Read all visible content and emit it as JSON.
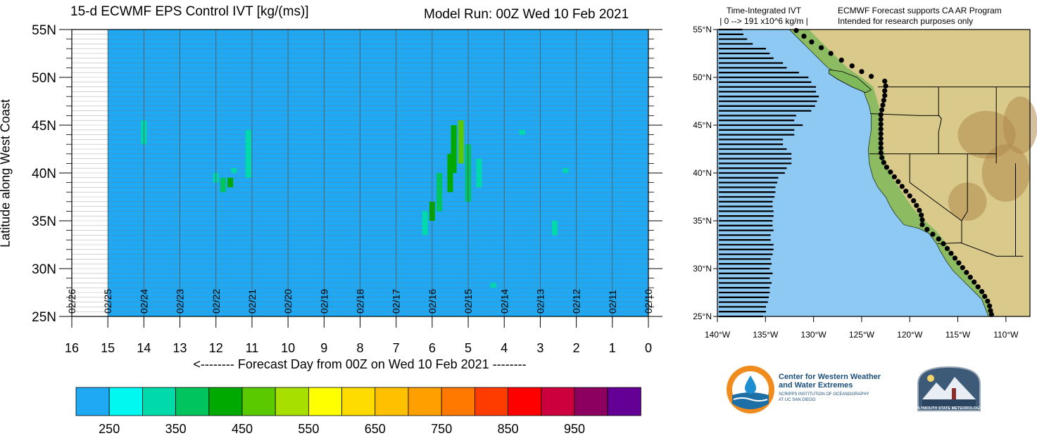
{
  "chart_data": [
    {
      "type": "heatmap",
      "title": "15-d ECWMF EPS Control IVT [kg/(ms)]",
      "subtitle": "Model Run: 00Z Wed 10 Feb 2021",
      "xlabel": "<-------- Forecast Day from 00Z on Wed 10 Feb 2021 --------",
      "ylabel": "Latitude along West Coast",
      "x_reversed": true,
      "xlim": [
        0,
        16
      ],
      "ylim": [
        25,
        55
      ],
      "x_ticks": [
        "16",
        "15",
        "14",
        "13",
        "12",
        "11",
        "10",
        "9",
        "8",
        "7",
        "6",
        "5",
        "4",
        "3",
        "2",
        "1",
        "0"
      ],
      "y_ticks": [
        "25N",
        "30N",
        "35N",
        "40N",
        "45N",
        "50N",
        "55N"
      ],
      "date_labels": [
        "02/26",
        "02/25",
        "02/24",
        "02/23",
        "02/22",
        "02/21",
        "02/20",
        "02/19",
        "02/18",
        "02/17",
        "02/16",
        "02/15",
        "02/14",
        "02/13",
        "02/12",
        "02/11",
        "02/10"
      ],
      "data_extent_days": [
        0,
        15
      ],
      "background_value": "< 250",
      "cells": [
        {
          "day": 14.0,
          "lat_min": 43,
          "lat_max": 45.5,
          "value": 300
        },
        {
          "day": 11.1,
          "lat_min": 39.5,
          "lat_max": 44.5,
          "value": 330
        },
        {
          "day": 11.5,
          "lat_min": 40,
          "lat_max": 40.5,
          "value": 330
        },
        {
          "day": 11.8,
          "lat_min": 38,
          "lat_max": 39.5,
          "value": 380
        },
        {
          "day": 12.0,
          "lat_min": 39,
          "lat_max": 40,
          "value": 320
        },
        {
          "day": 11.6,
          "lat_min": 38.5,
          "lat_max": 39.5,
          "value": 400
        },
        {
          "day": 2.3,
          "lat_min": 40,
          "lat_max": 40.5,
          "value": 320
        },
        {
          "day": 2.6,
          "lat_min": 33.5,
          "lat_max": 35,
          "value": 300
        },
        {
          "day": 3.5,
          "lat_min": 44,
          "lat_max": 44.5,
          "value": 300
        },
        {
          "day": 4.3,
          "lat_min": 28,
          "lat_max": 28.5,
          "value": 300
        },
        {
          "day": 6.0,
          "lat_min": 35,
          "lat_max": 37,
          "value": 400
        },
        {
          "day": 6.2,
          "lat_min": 33.5,
          "lat_max": 36,
          "value": 320
        },
        {
          "day": 5.8,
          "lat_min": 36,
          "lat_max": 40,
          "value": 380
        },
        {
          "day": 5.5,
          "lat_min": 38,
          "lat_max": 42,
          "value": 420
        },
        {
          "day": 5.4,
          "lat_min": 40,
          "lat_max": 45,
          "value": 430
        },
        {
          "day": 5.2,
          "lat_min": 41,
          "lat_max": 45.5,
          "value": 470
        },
        {
          "day": 5.0,
          "lat_min": 37,
          "lat_max": 43,
          "value": 380
        },
        {
          "day": 4.7,
          "lat_min": 38.5,
          "lat_max": 41.5,
          "value": 320
        }
      ]
    },
    {
      "type": "bar",
      "orientation": "horizontal",
      "title": "Time-Integrated IVT",
      "subtitle": "0 --> 191 x10^6 kg/m",
      "x_ticks": [
        "140°W",
        "135°W",
        "130°W",
        "125°W",
        "120°W",
        "115°W",
        "110°W"
      ],
      "y_ticks": [
        "25°N",
        "30°N",
        "35°N",
        "40°N",
        "45°N",
        "50°N",
        "55°N"
      ],
      "xlim": [
        191,
        0
      ],
      "ylim": [
        25,
        55
      ],
      "x_unit": "x10^6 kg/m",
      "lat_step": 0.5,
      "values": [
        47,
        50,
        50,
        52,
        53,
        54,
        54,
        56,
        54,
        57,
        54,
        56,
        55,
        57,
        58,
        58,
        55,
        55,
        58,
        57,
        57,
        58,
        58,
        57,
        57,
        59,
        60,
        60,
        62,
        63,
        70,
        72,
        77,
        77,
        77,
        72,
        68,
        68,
        80,
        80,
        89,
        80,
        82,
        98,
        102,
        104,
        106,
        103,
        103,
        98,
        95,
        85,
        72,
        68,
        58,
        54,
        50,
        36,
        30,
        26,
        25
      ]
    }
  ],
  "colorbar": {
    "labels": [
      "250",
      "350",
      "450",
      "550",
      "650",
      "750",
      "850",
      "950"
    ],
    "colors": [
      "#1fa9f5",
      "#00f8f0",
      "#00d9a9",
      "#00c45e",
      "#00a900",
      "#5bc900",
      "#a6df00",
      "#ffff00",
      "#ffdc00",
      "#ffc000",
      "#ffa000",
      "#ff7800",
      "#ff3c00",
      "#ff0000",
      "#cc003c",
      "#8c0060",
      "#640096"
    ]
  },
  "map_panel": {
    "header_left_line1": "Time-Integrated IVT",
    "header_left_line2": "| 0 --> 191 x10^6 kg/m |",
    "header_right_line1": "ECMWF Forecast supports CA AR Program",
    "header_right_line2": "Intended for research purposes only"
  },
  "logos": {
    "cw3e_line1": "Center for Western Weather",
    "cw3e_line2": "and Water Extremes",
    "cw3e_line3": "SCRIPPS INSTITUTION OF OCEANOGRAPHY",
    "cw3e_line4": "AT UC SAN DIEGO",
    "psu_text": "PLYMOUTH STATE METEOROLOGY"
  }
}
